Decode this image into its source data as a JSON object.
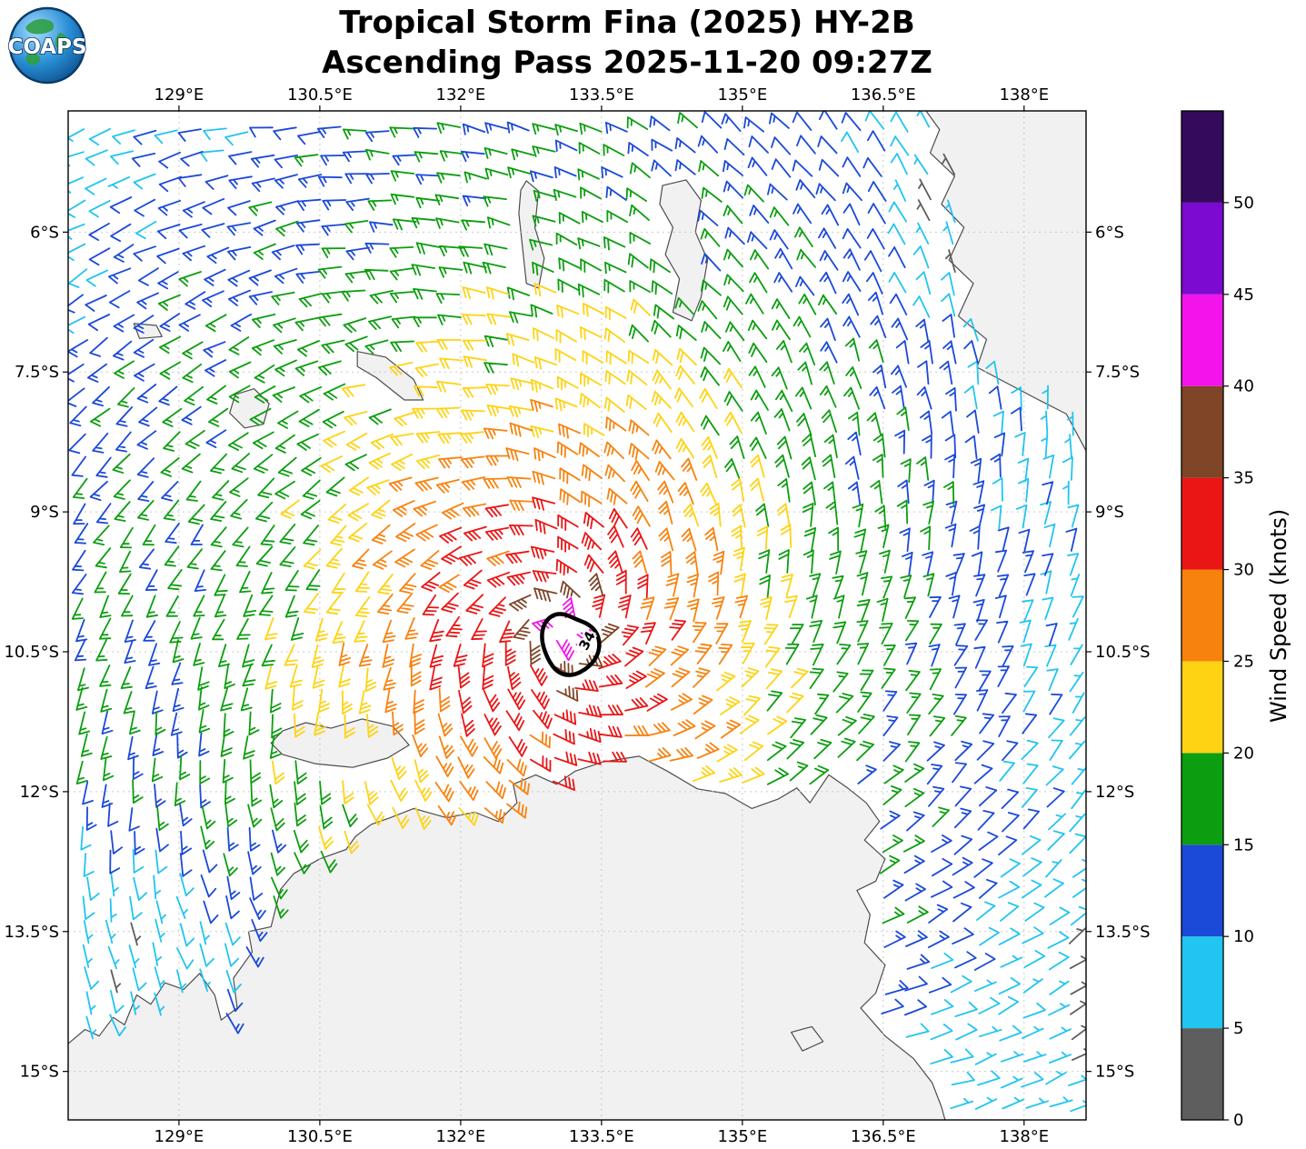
{
  "title": {
    "line1": "Tropical Storm Fina (2025) HY-2B",
    "line2": "Ascending Pass 2025-11-20 09:27Z"
  },
  "logo": {
    "text": "COAPS"
  },
  "map": {
    "lon_range": [
      127.82,
      138.66
    ],
    "lat_range": [
      -15.52,
      -4.7
    ],
    "lon_ticks": [
      {
        "lon": 129.0,
        "label": "129°E"
      },
      {
        "lon": 130.5,
        "label": "130.5°E"
      },
      {
        "lon": 132.0,
        "label": "132°E"
      },
      {
        "lon": 133.5,
        "label": "133.5°E"
      },
      {
        "lon": 135.0,
        "label": "135°E"
      },
      {
        "lon": 136.5,
        "label": "136.5°E"
      },
      {
        "lon": 138.0,
        "label": "138°E"
      }
    ],
    "lat_ticks": [
      {
        "lat": -6.0,
        "label": "6°S"
      },
      {
        "lat": -7.5,
        "label": "7.5°S"
      },
      {
        "lat": -9.0,
        "label": "9°S"
      },
      {
        "lat": -10.5,
        "label": "10.5°S"
      },
      {
        "lat": -12.0,
        "label": "12°S"
      },
      {
        "lat": -13.5,
        "label": "13.5°S"
      },
      {
        "lat": -15.0,
        "label": "15°S"
      }
    ],
    "land_fill": "#f1f1f1",
    "land_stroke": "#4d4d4d",
    "grid_color": "#c9c9c9",
    "land_polygons": {
      "australia": [
        [
          127.8,
          -14.72
        ],
        [
          128.0,
          -14.55
        ],
        [
          128.15,
          -14.62
        ],
        [
          128.3,
          -14.42
        ],
        [
          128.42,
          -14.5
        ],
        [
          128.55,
          -14.18
        ],
        [
          128.7,
          -14.28
        ],
        [
          128.85,
          -14.05
        ],
        [
          129.05,
          -14.12
        ],
        [
          129.22,
          -13.95
        ],
        [
          129.38,
          -14.18
        ],
        [
          129.45,
          -14.45
        ],
        [
          129.62,
          -14.32
        ],
        [
          129.58,
          -14.0
        ],
        [
          129.78,
          -13.72
        ],
        [
          129.74,
          -13.5
        ],
        [
          129.98,
          -13.45
        ],
        [
          130.08,
          -13.05
        ],
        [
          130.22,
          -12.88
        ],
        [
          130.5,
          -12.72
        ],
        [
          130.78,
          -12.62
        ],
        [
          130.88,
          -12.48
        ],
        [
          131.05,
          -12.35
        ],
        [
          131.25,
          -12.28
        ],
        [
          131.5,
          -12.18
        ],
        [
          131.85,
          -12.28
        ],
        [
          132.15,
          -12.22
        ],
        [
          132.4,
          -12.32
        ],
        [
          132.6,
          -12.12
        ],
        [
          132.56,
          -11.92
        ],
        [
          132.8,
          -11.82
        ],
        [
          133.02,
          -11.92
        ],
        [
          133.22,
          -11.78
        ],
        [
          133.52,
          -11.68
        ],
        [
          133.9,
          -11.62
        ],
        [
          134.2,
          -11.78
        ],
        [
          134.52,
          -11.97
        ],
        [
          134.82,
          -12.02
        ],
        [
          135.1,
          -12.18
        ],
        [
          135.38,
          -12.08
        ],
        [
          135.58,
          -11.96
        ],
        [
          135.72,
          -12.12
        ],
        [
          135.92,
          -11.82
        ],
        [
          136.12,
          -11.96
        ],
        [
          136.32,
          -12.12
        ],
        [
          136.46,
          -12.32
        ],
        [
          136.3,
          -12.52
        ],
        [
          136.52,
          -12.72
        ],
        [
          136.42,
          -12.96
        ],
        [
          136.22,
          -13.06
        ],
        [
          136.36,
          -13.32
        ],
        [
          136.3,
          -13.62
        ],
        [
          136.52,
          -13.86
        ],
        [
          136.42,
          -14.16
        ],
        [
          136.26,
          -14.32
        ],
        [
          136.52,
          -14.62
        ],
        [
          136.82,
          -14.86
        ],
        [
          137.02,
          -15.12
        ],
        [
          137.12,
          -15.38
        ],
        [
          137.18,
          -15.6
        ],
        [
          127.8,
          -15.6
        ]
      ],
      "melville_island": [
        [
          129.98,
          -11.48
        ],
        [
          130.1,
          -11.35
        ],
        [
          130.35,
          -11.26
        ],
        [
          130.62,
          -11.32
        ],
        [
          130.95,
          -11.22
        ],
        [
          131.28,
          -11.3
        ],
        [
          131.45,
          -11.5
        ],
        [
          131.22,
          -11.64
        ],
        [
          130.85,
          -11.74
        ],
        [
          130.45,
          -11.7
        ],
        [
          130.1,
          -11.6
        ]
      ],
      "papua_aru_coast": [
        [
          136.92,
          -4.65
        ],
        [
          137.1,
          -4.9
        ],
        [
          137.0,
          -5.15
        ],
        [
          137.26,
          -5.4
        ],
        [
          137.12,
          -5.7
        ],
        [
          137.36,
          -5.95
        ],
        [
          137.2,
          -6.3
        ],
        [
          137.46,
          -6.55
        ],
        [
          137.3,
          -6.9
        ],
        [
          137.6,
          -7.15
        ],
        [
          137.5,
          -7.45
        ],
        [
          137.82,
          -7.62
        ],
        [
          138.12,
          -7.78
        ],
        [
          138.45,
          -7.95
        ],
        [
          138.7,
          -8.42
        ],
        [
          138.7,
          -4.65
        ]
      ],
      "kai_islands": [
        [
          132.7,
          -5.45
        ],
        [
          132.83,
          -5.56
        ],
        [
          132.79,
          -5.95
        ],
        [
          132.89,
          -6.28
        ],
        [
          132.83,
          -6.6
        ],
        [
          132.7,
          -6.55
        ],
        [
          132.66,
          -6.18
        ],
        [
          132.62,
          -5.8
        ],
        [
          132.64,
          -5.55
        ]
      ],
      "aru_islands": [
        [
          134.15,
          -5.5
        ],
        [
          134.4,
          -5.44
        ],
        [
          134.56,
          -5.66
        ],
        [
          134.5,
          -6.0
        ],
        [
          134.63,
          -6.3
        ],
        [
          134.56,
          -6.7
        ],
        [
          134.46,
          -6.95
        ],
        [
          134.26,
          -6.86
        ],
        [
          134.33,
          -6.5
        ],
        [
          134.18,
          -6.24
        ],
        [
          134.26,
          -5.95
        ],
        [
          134.12,
          -5.7
        ]
      ],
      "tanimbar_islands": [
        [
          130.9,
          -7.28
        ],
        [
          131.2,
          -7.34
        ],
        [
          131.5,
          -7.58
        ],
        [
          131.6,
          -7.8
        ],
        [
          131.4,
          -7.8
        ],
        [
          131.1,
          -7.56
        ],
        [
          130.9,
          -7.44
        ]
      ],
      "sermata_island": [
        [
          128.52,
          -6.98
        ],
        [
          128.76,
          -7.0
        ],
        [
          128.82,
          -7.12
        ],
        [
          128.58,
          -7.14
        ]
      ],
      "babar_island": [
        [
          129.6,
          -7.74
        ],
        [
          129.8,
          -7.68
        ],
        [
          129.96,
          -7.84
        ],
        [
          129.9,
          -8.06
        ],
        [
          129.7,
          -8.1
        ],
        [
          129.54,
          -7.94
        ]
      ],
      "small_island_se": [
        [
          135.52,
          -14.58
        ],
        [
          135.74,
          -14.52
        ],
        [
          135.86,
          -14.68
        ],
        [
          135.64,
          -14.78
        ]
      ]
    }
  },
  "colorbar": {
    "title": "Wind Speed (knots)",
    "ticks": [
      0,
      5,
      10,
      15,
      20,
      25,
      30,
      35,
      40,
      45,
      50
    ],
    "max_value": 55,
    "stops": [
      {
        "from": 0,
        "to": 5,
        "color": "#5e5e5e"
      },
      {
        "from": 5,
        "to": 10,
        "color": "#22c4f0"
      },
      {
        "from": 10,
        "to": 15,
        "color": "#1b49d8"
      },
      {
        "from": 15,
        "to": 20,
        "color": "#0c9e10"
      },
      {
        "from": 20,
        "to": 25,
        "color": "#fed314"
      },
      {
        "from": 25,
        "to": 30,
        "color": "#f8820e"
      },
      {
        "from": 30,
        "to": 35,
        "color": "#ea1515"
      },
      {
        "from": 35,
        "to": 40,
        "color": "#7e4527"
      },
      {
        "from": 40,
        "to": 45,
        "color": "#f214ea"
      },
      {
        "from": 45,
        "to": 50,
        "color": "#7d0ad0"
      },
      {
        "from": 50,
        "to": 55,
        "color": "#330a5c"
      }
    ]
  },
  "chart_data": {
    "type": "wind-barb-map",
    "storm": {
      "name": "Tropical Storm Fina",
      "year": 2025,
      "satellite": "HY-2B",
      "pass_type": "Ascending Pass",
      "pass_time": "2025-11-20 09:27Z",
      "center_lon": 133.1,
      "center_lat": -10.25,
      "max_wind_kt": 43
    },
    "wind_model": {
      "grid_spacing_deg": 0.25,
      "center_lon": 133.1,
      "center_lat": -10.25,
      "rotation": "clockwise",
      "hemisphere": "southern",
      "inflow_angle_deg": 22,
      "radius_deg": [
        0,
        0.15,
        0.4,
        0.8,
        1.5,
        2.2,
        3.0,
        3.8,
        4.6,
        5.6,
        6.8,
        8.0,
        9.5
      ],
      "speed_kt": [
        37,
        41,
        37,
        33,
        30,
        26,
        21,
        18,
        16,
        14.5,
        10,
        6,
        4
      ],
      "ew_stretch_west": 1.1,
      "ew_stretch_east": 1.35,
      "calm_patches": [
        {
          "lon": 137.55,
          "lat": -6.0,
          "radius_deg": 0.9,
          "factor": 0.35
        },
        {
          "lon": 128.7,
          "lat": -13.6,
          "radius_deg": 1.1,
          "factor": 0.4
        }
      ]
    },
    "contour_34kt": {
      "label": "34",
      "center_lon": 133.16,
      "center_lat": -10.42,
      "rx_deg": 0.28,
      "ry_deg": 0.34
    }
  }
}
